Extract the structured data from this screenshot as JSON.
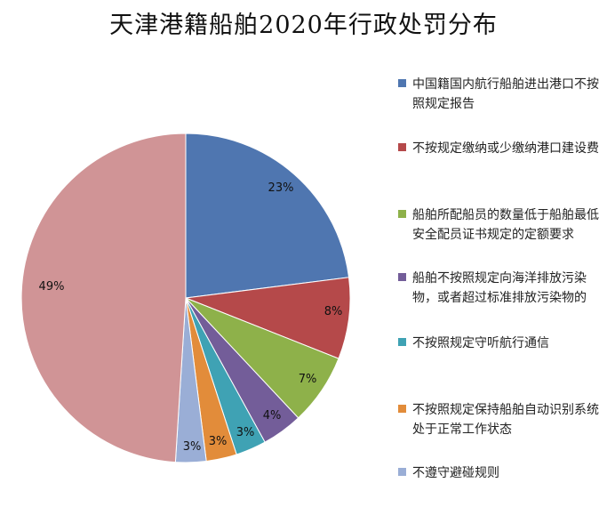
{
  "chart_data": {
    "type": "pie",
    "title": "天津港籍船舶2020年行政处罚分布",
    "slices": [
      {
        "name": "中国籍国内航行船舶进出港口不按照规定报告",
        "value": 23,
        "label": "23%",
        "color": "#4f76b0"
      },
      {
        "name": "不按规定缴纳或少缴纳港口建设费",
        "value": 8,
        "label": "8%",
        "color": "#b5494a"
      },
      {
        "name": "船舶所配船员的数量低于船舶最低安全配员证书规定的定额要求",
        "value": 7,
        "label": "7%",
        "color": "#8eb14a"
      },
      {
        "name": "船舶不按照规定向海洋排放污染物，或者超过标准排放污染物的",
        "value": 4,
        "label": "4%",
        "color": "#735d99"
      },
      {
        "name": "不按照规定守听航行通信",
        "value": 3,
        "label": "3%",
        "color": "#3fa2b4"
      },
      {
        "name": "不按照规定保持船舶自动识别系统处于正常工作状态",
        "value": 3,
        "label": "3%",
        "color": "#e28c3a"
      },
      {
        "name": "不遵守避碰规则",
        "value": 3,
        "label": "3%",
        "color": "#9aaed6"
      },
      {
        "name": "",
        "value": 49,
        "label": "49%",
        "color": "#d09496"
      }
    ],
    "legend_placement": "right"
  }
}
